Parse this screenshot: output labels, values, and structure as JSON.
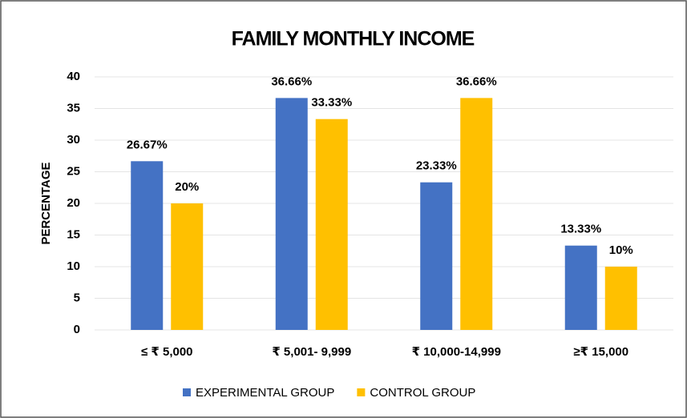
{
  "chart_data": {
    "type": "bar",
    "title": "FAMILY MONTHLY INCOME",
    "y_label": "PERCENTAGE",
    "categories": [
      "≤ ₹ 5,000",
      "₹ 5,001- 9,999",
      "₹ 10,000-14,999",
      "≥₹ 15,000"
    ],
    "series": [
      {
        "name": "EXPERIMENTAL GROUP",
        "color": "#4472c4",
        "values": [
          26.67,
          36.66,
          23.33,
          13.33
        ],
        "value_labels": [
          "26.67%",
          "36.66%",
          "23.33%",
          "13.33%"
        ]
      },
      {
        "name": "CONTROL GROUP",
        "color": "#ffc000",
        "values": [
          20,
          33.33,
          36.66,
          10
        ],
        "value_labels": [
          "20%",
          "33.33%",
          "36.66%",
          "10%"
        ]
      }
    ],
    "ylim": [
      0,
      40
    ],
    "yticks": [
      0,
      5,
      10,
      15,
      20,
      25,
      30,
      35,
      40
    ],
    "grid": true,
    "legend": "bottom"
  }
}
